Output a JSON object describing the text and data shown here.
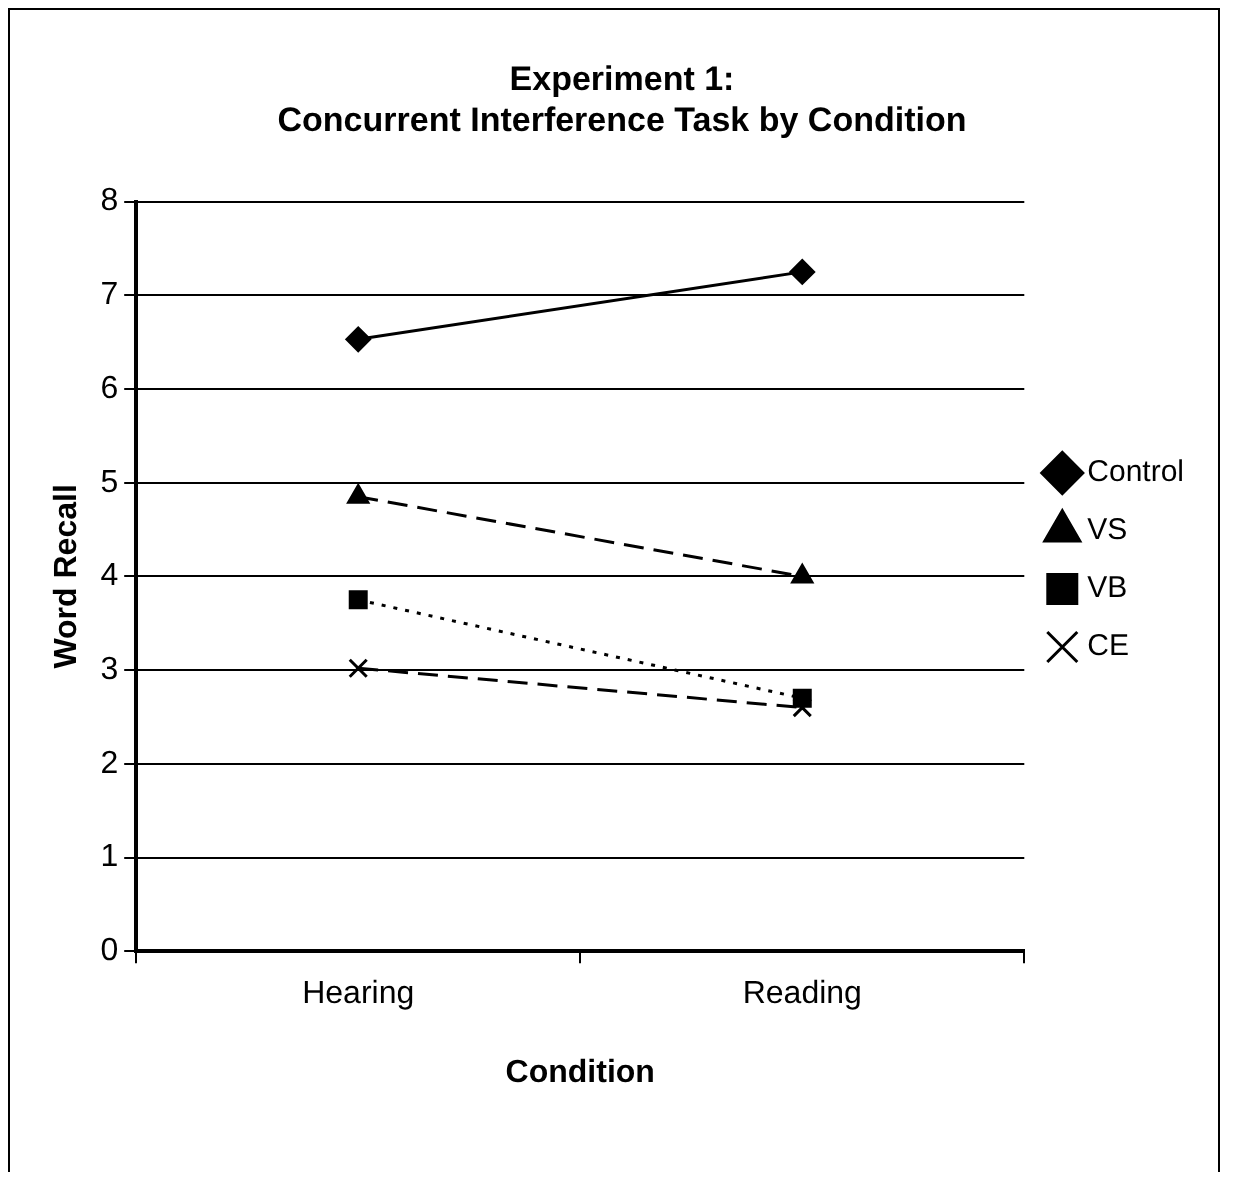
{
  "chart_data": {
    "type": "line",
    "title": "Experiment 1:\nConcurrent Interference Task by Condition",
    "xlabel": "Condition",
    "ylabel": "Word Recall",
    "categories": [
      "Hearing",
      "Reading"
    ],
    "ylim": [
      0,
      8
    ],
    "yticks": [
      0,
      1,
      2,
      3,
      4,
      5,
      6,
      7,
      8
    ],
    "grid": "y",
    "legend": "right",
    "series": [
      {
        "name": "Control",
        "color": "#000000",
        "values": [
          6.53,
          7.25
        ],
        "marker": "diamond",
        "line_style": "solid"
      },
      {
        "name": "VS",
        "color": "#000000",
        "values": [
          4.85,
          4.0
        ],
        "marker": "triangle",
        "line_style": "dashed"
      },
      {
        "name": "VB",
        "color": "#000000",
        "values": [
          3.75,
          2.7
        ],
        "marker": "square",
        "line_style": "dotted"
      },
      {
        "name": "CE",
        "color": "#000000",
        "values": [
          3.02,
          2.6
        ],
        "marker": "cross",
        "line_style": "dashed"
      }
    ]
  }
}
